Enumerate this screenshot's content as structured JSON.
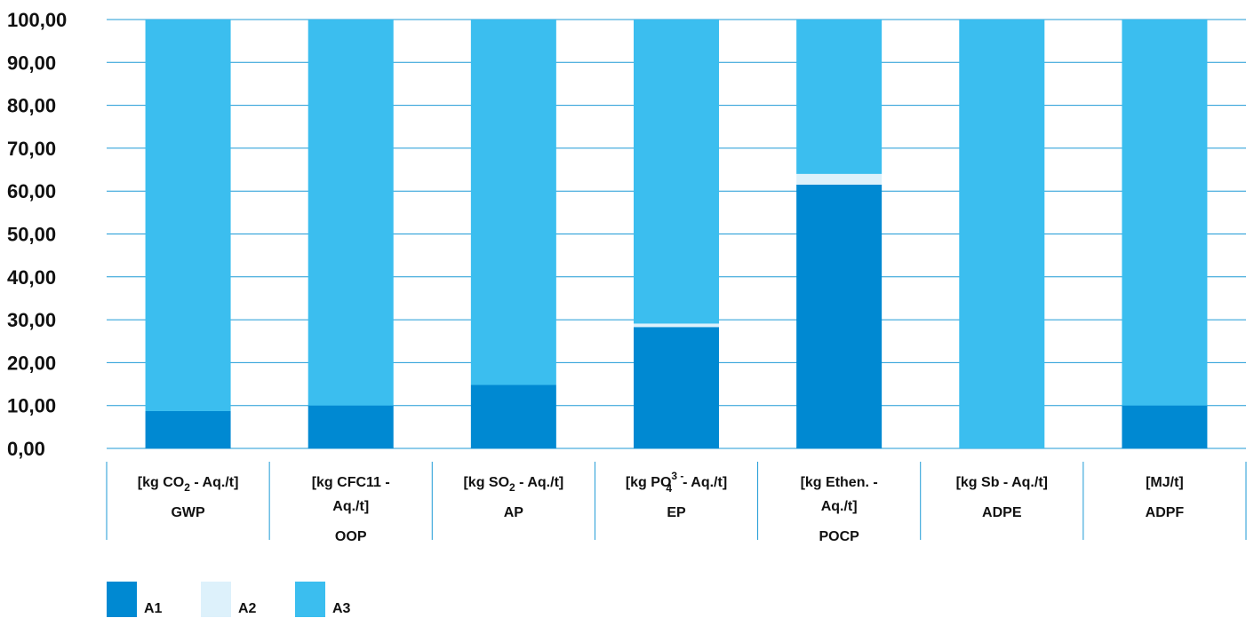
{
  "chart_data": {
    "type": "bar",
    "stacked": true,
    "ylim": [
      0,
      100
    ],
    "yticks": [
      "0,00",
      "10,00",
      "20,00",
      "30,00",
      "40,00",
      "50,00",
      "60,00",
      "70,00",
      "80,00",
      "90,00",
      "100,00"
    ],
    "categories": [
      {
        "unit": [
          "[kg CO",
          "2",
          " - Aq./t]"
        ],
        "name": "GWP"
      },
      {
        "unit": [
          "[kg CFC11 -",
          "Aq./t]"
        ],
        "name": "OOP"
      },
      {
        "unit": [
          "[kg SO",
          "2",
          " - Aq./t]"
        ],
        "name": "AP"
      },
      {
        "unit": [
          "[kg PO",
          "3 -",
          "4",
          "- Aq./t]"
        ],
        "name": "EP"
      },
      {
        "unit": [
          "[kg Ethen. -",
          "Aq./t]"
        ],
        "name": "POCP"
      },
      {
        "unit": [
          "[kg Sb - Aq./t]"
        ],
        "name": "ADPE"
      },
      {
        "unit": [
          "[MJ/t]"
        ],
        "name": "ADPF"
      }
    ],
    "series": [
      {
        "name": "A1",
        "color": "#0089D2",
        "values": [
          8.7,
          10.0,
          14.8,
          28.3,
          61.5,
          0.0,
          10.0
        ]
      },
      {
        "name": "A2",
        "color": "#DDF1FB",
        "values": [
          0.0,
          0.0,
          0.0,
          0.8,
          2.5,
          0.0,
          0.0
        ]
      },
      {
        "name": "A3",
        "color": "#3BBEEF",
        "values": [
          91.3,
          90.0,
          85.2,
          70.9,
          36.0,
          100.0,
          90.0
        ]
      }
    ],
    "gridline_color": "#1E9AD6",
    "grid": true,
    "legend": "bottom-left"
  }
}
